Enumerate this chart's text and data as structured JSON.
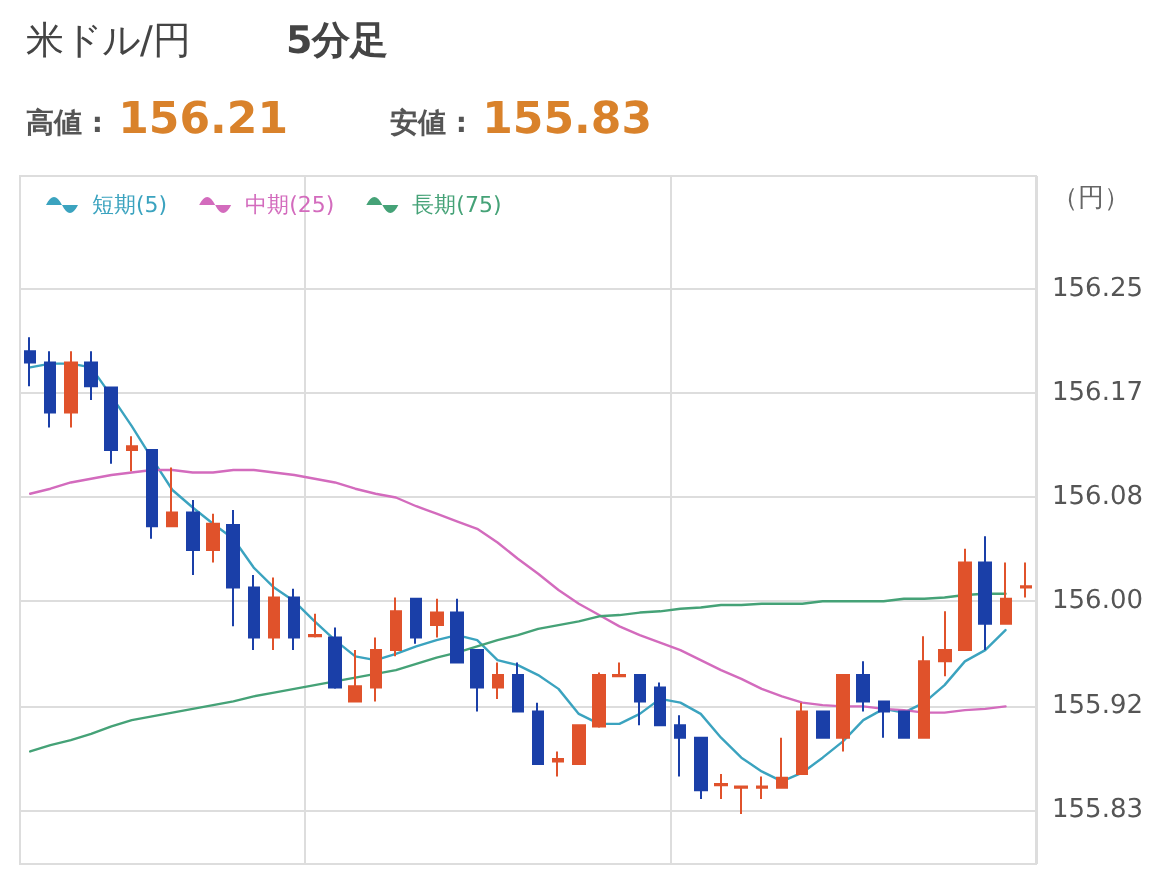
{
  "chart_data": {
    "type": "candlestick",
    "title": "米ドル/円",
    "subtitle": "5分足",
    "annotations": [
      "高値 : 156.21",
      "安値 : 155.83"
    ],
    "ylabel": "（円）",
    "categories": [
      null,
      null,
      null,
      null,
      null,
      null,
      null,
      null,
      null,
      null,
      null,
      null,
      null,
      null,
      null,
      null,
      null,
      null,
      null,
      null,
      null,
      null,
      null,
      null,
      null,
      null,
      null,
      null,
      null,
      null,
      null,
      null,
      null,
      null,
      null,
      null,
      null,
      null,
      null,
      null,
      null,
      null,
      null,
      null,
      null,
      null,
      null,
      null,
      null,
      null
    ],
    "ylim": [
      155.79,
      156.34
    ],
    "yticks": [
      156.25,
      {
        "value": 156.1667,
        "label": "156.17"
      },
      {
        "value": 156.0833,
        "label": "156.08"
      },
      {
        "value": 156,
        "label": "156.00"
      },
      {
        "value": 155.9167,
        "label": "155.92"
      },
      {
        "value": 155.8333,
        "label": "155.83"
      }
    ],
    "grid": true,
    "legend": "top left",
    "marker": "none",
    "line_style": "solid",
    "series": [
      {
        "type": "candlestick",
        "ohlc": [
          [
            156.2,
            156.211,
            156.172,
            156.191
          ],
          [
            156.191,
            156.2,
            156.139,
            156.151
          ],
          [
            156.151,
            156.2,
            156.139,
            156.191
          ],
          [
            156.191,
            156.2,
            156.161,
            156.172
          ],
          [
            156.171,
            156.171,
            156.11,
            156.121
          ],
          [
            156.121,
            156.132,
            156.104,
            156.124
          ],
          [
            156.121,
            156.121,
            156.05,
            156.06
          ],
          [
            156.06,
            156.107,
            156.06,
            156.071
          ],
          [
            156.071,
            156.081,
            156.021,
            156.041
          ],
          [
            156.041,
            156.07,
            156.031,
            156.062
          ],
          [
            156.061,
            156.073,
            155.98,
            156.011
          ],
          [
            156.011,
            156.021,
            155.961,
            155.971
          ],
          [
            155.971,
            156.019,
            155.961,
            156.003
          ],
          [
            156.003,
            156.01,
            155.961,
            155.971
          ],
          [
            155.972,
            155.99,
            155.971,
            155.973
          ],
          [
            155.971,
            155.979,
            155.93,
            155.931
          ],
          [
            155.92,
            155.961,
            155.92,
            155.932
          ],
          [
            155.931,
            155.971,
            155.92,
            155.961
          ],
          [
            155.961,
            156.003,
            155.956,
            155.992
          ],
          [
            156.002,
            156.002,
            155.966,
            155.971
          ],
          [
            155.981,
            156.002,
            155.971,
            155.991
          ],
          [
            155.991,
            156.002,
            155.951,
            155.951
          ],
          [
            155.961,
            155.961,
            155.912,
            155.931
          ],
          [
            155.931,
            155.951,
            155.922,
            155.941
          ],
          [
            155.941,
            155.951,
            155.912,
            155.912
          ],
          [
            155.912,
            155.919,
            155.87,
            155.87
          ],
          [
            155.872,
            155.88,
            155.86,
            155.874
          ],
          [
            155.87,
            155.901,
            155.87,
            155.901
          ],
          [
            155.9,
            155.943,
            155.899,
            155.941
          ],
          [
            155.94,
            155.951,
            155.94,
            155.941
          ],
          [
            155.941,
            155.941,
            155.901,
            155.92
          ],
          [
            155.931,
            155.935,
            155.901,
            155.901
          ],
          [
            155.901,
            155.909,
            155.86,
            155.891
          ],
          [
            155.891,
            155.891,
            155.842,
            155.849
          ],
          [
            155.853,
            155.862,
            155.842,
            155.854
          ],
          [
            155.851,
            155.852,
            155.83,
            155.852
          ],
          [
            155.851,
            155.86,
            155.842,
            155.852
          ],
          [
            155.851,
            155.891,
            155.851,
            155.859
          ],
          [
            155.862,
            155.919,
            155.862,
            155.912
          ],
          [
            155.912,
            155.912,
            155.891,
            155.891
          ],
          [
            155.891,
            155.941,
            155.88,
            155.941
          ],
          [
            155.941,
            155.952,
            155.912,
            155.92
          ],
          [
            155.92,
            155.92,
            155.891,
            155.912
          ],
          [
            155.912,
            155.912,
            155.891,
            155.891
          ],
          [
            155.891,
            155.972,
            155.891,
            155.952
          ],
          [
            155.952,
            155.992,
            155.94,
            155.961
          ],
          [
            155.961,
            156.042,
            155.961,
            156.031
          ],
          [
            156.031,
            156.052,
            155.961,
            155.982
          ],
          [
            155.982,
            156.031,
            155.982,
            156.002
          ],
          [
            156.011,
            156.031,
            156.003,
            156.012
          ]
        ],
        "colors": [
          "#1a3fa8",
          "#1a3fa8",
          "#e0522b",
          "#1a3fa8",
          "#1a3fa8",
          "#e0522b",
          "#1a3fa8",
          "#e0522b",
          "#1a3fa8",
          "#e0522b",
          "#1a3fa8",
          "#1a3fa8",
          "#e0522b",
          "#1a3fa8",
          "#e0522b",
          "#1a3fa8",
          "#e0522b",
          "#e0522b",
          "#e0522b",
          "#1a3fa8",
          "#e0522b",
          "#1a3fa8",
          "#1a3fa8",
          "#e0522b",
          "#1a3fa8",
          "#1a3fa8",
          "#e0522b",
          "#e0522b",
          "#e0522b",
          "#e0522b",
          "#1a3fa8",
          "#1a3fa8",
          "#1a3fa8",
          "#1a3fa8",
          "#e0522b",
          "#e0522b",
          "#e0522b",
          "#e0522b",
          "#e0522b",
          "#1a3fa8",
          "#e0522b",
          "#1a3fa8",
          "#1a3fa8",
          "#1a3fa8",
          "#e0522b",
          "#e0522b",
          "#e0522b",
          "#1a3fa8",
          "#e0522b",
          "#e0522b"
        ]
      },
      {
        "type": "line",
        "name": "短期(5)",
        "color": "#3ba3bf",
        "values": [
          156.187,
          156.19,
          156.19,
          156.187,
          156.164,
          156.14,
          156.114,
          156.089,
          156.075,
          156.062,
          156.05,
          156.027,
          156.011,
          156.0,
          155.984,
          155.969,
          155.956,
          155.953,
          155.958,
          155.964,
          155.969,
          155.973,
          155.969,
          155.953,
          155.949,
          155.941,
          155.93,
          155.91,
          155.902,
          155.902,
          155.91,
          155.922,
          155.919,
          155.91,
          155.891,
          155.875,
          155.864,
          155.856,
          155.863,
          155.875,
          155.888,
          155.905,
          155.914,
          155.911,
          155.919,
          155.933,
          155.952,
          155.961,
          155.977,
          null
        ]
      },
      {
        "type": "line",
        "name": "中期(25)",
        "color": "#d36bbd",
        "values": [
          156.086,
          156.09,
          156.095,
          156.098,
          156.101,
          156.103,
          156.105,
          156.105,
          156.103,
          156.103,
          156.105,
          156.105,
          156.103,
          156.101,
          156.098,
          156.095,
          156.09,
          156.086,
          156.083,
          156.076,
          156.07,
          156.064,
          156.058,
          156.047,
          156.034,
          156.022,
          156.009,
          155.998,
          155.989,
          155.98,
          155.973,
          155.967,
          155.961,
          155.953,
          155.945,
          155.938,
          155.93,
          155.924,
          155.919,
          155.917,
          155.916,
          155.916,
          155.914,
          155.913,
          155.911,
          155.911,
          155.913,
          155.914,
          155.916,
          null
        ]
      },
      {
        "type": "line",
        "name": "長期(75)",
        "color": "#45a277",
        "values": [
          155.88,
          155.885,
          155.889,
          155.894,
          155.9,
          155.905,
          155.908,
          155.911,
          155.914,
          155.917,
          155.92,
          155.924,
          155.927,
          155.93,
          155.933,
          155.936,
          155.939,
          155.942,
          155.945,
          155.95,
          155.955,
          155.959,
          155.964,
          155.969,
          155.973,
          155.978,
          155.981,
          155.984,
          155.988,
          155.989,
          155.991,
          155.992,
          155.994,
          155.995,
          155.997,
          155.997,
          155.998,
          155.998,
          155.998,
          156.0,
          156.0,
          156.0,
          156.0,
          156.002,
          156.002,
          156.003,
          156.005,
          156.006,
          156.006,
          null
        ]
      }
    ]
  }
}
